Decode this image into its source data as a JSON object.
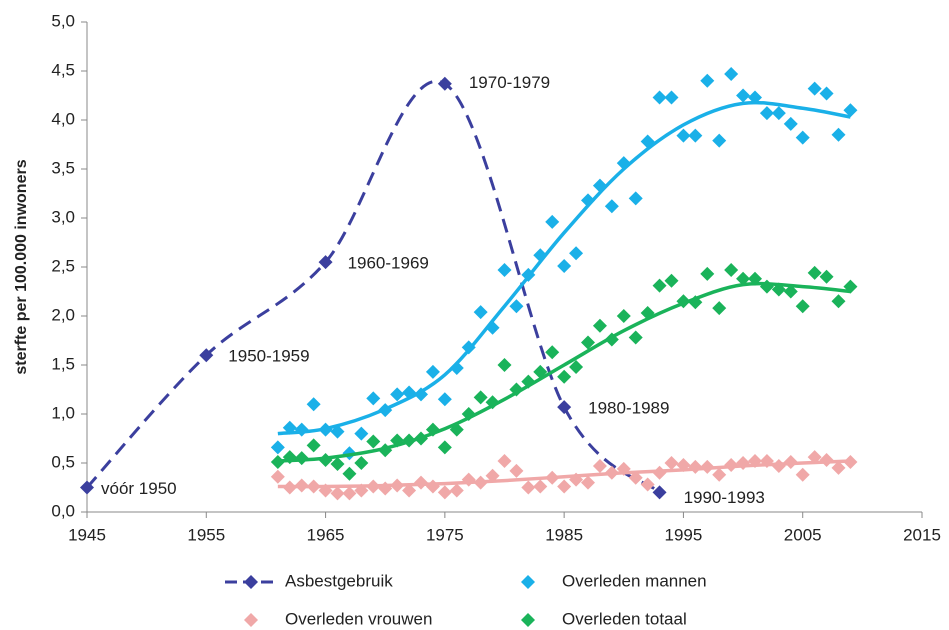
{
  "chart_data": {
    "type": "scatter",
    "y_label": "sterfte per 100.000 inwoners",
    "xlim": [
      1945,
      2015
    ],
    "xticks": [
      1945,
      1955,
      1965,
      1975,
      1985,
      1995,
      2005,
      2015
    ],
    "ylim": [
      0,
      5
    ],
    "yticks": [
      {
        "value": 0,
        "label": "0,0"
      },
      {
        "value": 0.5,
        "label": "0,5"
      },
      {
        "value": 1,
        "label": "1,0"
      },
      {
        "value": 1.5,
        "label": "1,5"
      },
      {
        "value": 2,
        "label": "2,0"
      },
      {
        "value": 2.5,
        "label": "2,5"
      },
      {
        "value": 3,
        "label": "3,0"
      },
      {
        "value": 3.5,
        "label": "3,5"
      },
      {
        "value": 4,
        "label": "4,0"
      },
      {
        "value": 4.5,
        "label": "4,5"
      },
      {
        "value": 5,
        "label": "5,0"
      }
    ],
    "series": [
      {
        "name": "Asbestgebruik",
        "color": "#3b3f9e",
        "style": "dashed-line",
        "x": [
          1945,
          1955,
          1965,
          1975,
          1985,
          1993
        ],
        "values": [
          0.25,
          1.6,
          2.55,
          4.37,
          1.07,
          0.2
        ],
        "point_labels": [
          "vóór 1950",
          "1950-1959",
          "1960-1969",
          "1970-1979",
          "1980-1989",
          "1990-1993"
        ]
      },
      {
        "name": "Overleden mannen",
        "color": "#1ab0e8",
        "x": [
          1961,
          1962,
          1963,
          1964,
          1965,
          1966,
          1967,
          1968,
          1969,
          1970,
          1971,
          1972,
          1973,
          1974,
          1975,
          1976,
          1977,
          1978,
          1979,
          1980,
          1981,
          1982,
          1983,
          1984,
          1985,
          1986,
          1987,
          1988,
          1989,
          1990,
          1991,
          1992,
          1993,
          1994,
          1995,
          1996,
          1997,
          1998,
          1999,
          2000,
          2001,
          2002,
          2003,
          2004,
          2005,
          2006,
          2007,
          2008,
          2009
        ],
        "values": [
          0.66,
          0.86,
          0.84,
          1.1,
          0.84,
          0.82,
          0.6,
          0.8,
          1.16,
          1.04,
          1.2,
          1.22,
          1.2,
          1.43,
          1.15,
          1.47,
          1.68,
          2.04,
          1.88,
          2.47,
          2.1,
          2.42,
          2.62,
          2.96,
          2.51,
          2.64,
          3.18,
          3.33,
          3.12,
          3.56,
          3.2,
          3.78,
          4.23,
          4.23,
          3.84,
          3.84,
          4.4,
          3.79,
          4.47,
          4.25,
          4.23,
          4.07,
          4.07,
          3.96,
          3.82,
          4.32,
          4.27,
          3.85,
          4.1
        ],
        "trend": {
          "x": [
            1961,
            1965,
            1970,
            1975,
            1980,
            1985,
            1990,
            1995,
            2000,
            2005,
            2009
          ],
          "values": [
            0.8,
            0.85,
            1.05,
            1.4,
            2.1,
            2.85,
            3.5,
            3.95,
            4.17,
            4.12,
            4.03
          ]
        }
      },
      {
        "name": "Overleden vrouwen",
        "color": "#f0a8a8",
        "x": [
          1961,
          1962,
          1963,
          1964,
          1965,
          1966,
          1967,
          1968,
          1969,
          1970,
          1971,
          1972,
          1973,
          1974,
          1975,
          1976,
          1977,
          1978,
          1979,
          1980,
          1981,
          1982,
          1983,
          1984,
          1985,
          1986,
          1987,
          1988,
          1989,
          1990,
          1991,
          1992,
          1993,
          1994,
          1995,
          1996,
          1997,
          1998,
          1999,
          2000,
          2001,
          2002,
          2003,
          2004,
          2005,
          2006,
          2007,
          2008,
          2009
        ],
        "values": [
          0.36,
          0.25,
          0.27,
          0.26,
          0.22,
          0.19,
          0.19,
          0.22,
          0.26,
          0.24,
          0.27,
          0.22,
          0.3,
          0.26,
          0.2,
          0.22,
          0.33,
          0.3,
          0.37,
          0.52,
          0.42,
          0.25,
          0.26,
          0.35,
          0.26,
          0.33,
          0.3,
          0.47,
          0.4,
          0.44,
          0.35,
          0.28,
          0.4,
          0.5,
          0.48,
          0.46,
          0.46,
          0.38,
          0.48,
          0.5,
          0.52,
          0.52,
          0.47,
          0.51,
          0.38,
          0.56,
          0.53,
          0.45,
          0.51
        ],
        "trend": {
          "x": [
            1961,
            1965,
            1970,
            1975,
            1980,
            1985,
            1990,
            1995,
            2000,
            2005,
            2009
          ],
          "values": [
            0.26,
            0.26,
            0.27,
            0.29,
            0.32,
            0.36,
            0.4,
            0.43,
            0.47,
            0.5,
            0.52
          ]
        }
      },
      {
        "name": "Overleden totaal",
        "color": "#1ab35a",
        "x": [
          1961,
          1962,
          1963,
          1964,
          1965,
          1966,
          1967,
          1968,
          1969,
          1970,
          1971,
          1972,
          1973,
          1974,
          1975,
          1976,
          1977,
          1978,
          1979,
          1980,
          1981,
          1982,
          1983,
          1984,
          1985,
          1986,
          1987,
          1988,
          1989,
          1990,
          1991,
          1992,
          1993,
          1994,
          1995,
          1996,
          1997,
          1998,
          1999,
          2000,
          2001,
          2002,
          2003,
          2004,
          2005,
          2006,
          2007,
          2008,
          2009
        ],
        "values": [
          0.51,
          0.56,
          0.55,
          0.68,
          0.53,
          0.49,
          0.39,
          0.5,
          0.72,
          0.63,
          0.73,
          0.73,
          0.75,
          0.84,
          0.66,
          0.84,
          1.0,
          1.17,
          1.12,
          1.5,
          1.25,
          1.33,
          1.43,
          1.63,
          1.38,
          1.48,
          1.73,
          1.9,
          1.76,
          2.0,
          1.78,
          2.03,
          2.31,
          2.36,
          2.15,
          2.14,
          2.43,
          2.08,
          2.47,
          2.38,
          2.38,
          2.3,
          2.27,
          2.25,
          2.1,
          2.44,
          2.4,
          2.15,
          2.3
        ],
        "trend": {
          "x": [
            1961,
            1965,
            1970,
            1975,
            1980,
            1985,
            1990,
            1995,
            2000,
            2005,
            2009
          ],
          "values": [
            0.52,
            0.55,
            0.65,
            0.85,
            1.15,
            1.5,
            1.85,
            2.13,
            2.32,
            2.3,
            2.25
          ]
        }
      }
    ]
  }
}
